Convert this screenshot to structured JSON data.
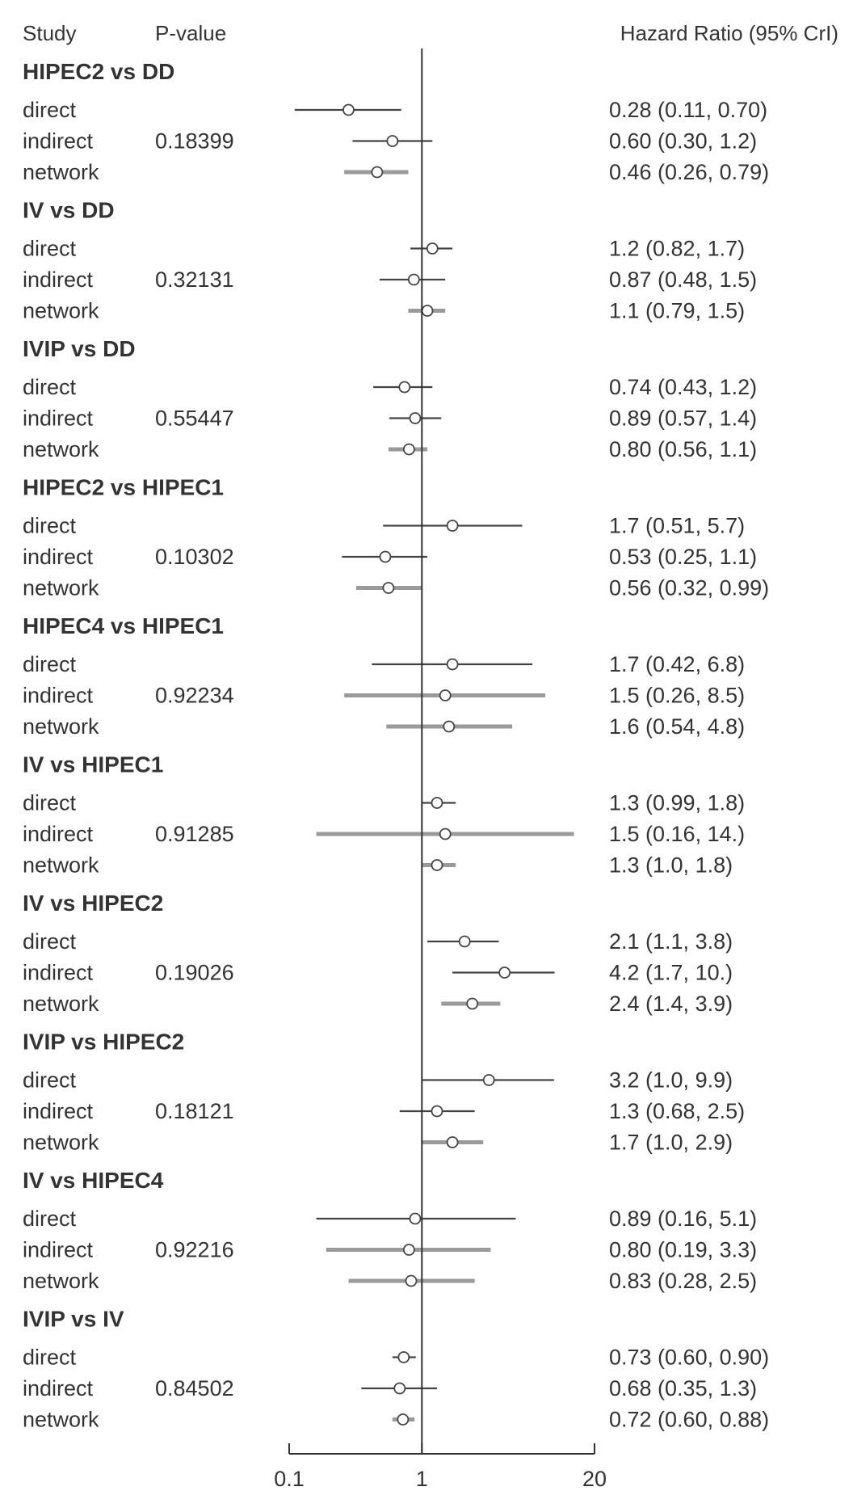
{
  "chart_data": {
    "type": "forest",
    "columns": {
      "study": "Study",
      "pvalue": "P-value",
      "effect": "Hazard Ratio (95% CrI)"
    },
    "x_scale": "log",
    "xlim": [
      0.1,
      20
    ],
    "xticks": [
      "0.1",
      "1",
      "20"
    ],
    "reference_line": 1,
    "groups": [
      {
        "label": "HIPEC2 vs DD",
        "pvalue": "0.18399",
        "rows": [
          {
            "name": "direct",
            "hr": 0.28,
            "lo": 0.11,
            "hi": 0.7,
            "text": "0.28 (0.11, 0.70)"
          },
          {
            "name": "indirect",
            "hr": 0.6,
            "lo": 0.3,
            "hi": 1.2,
            "text": "0.60 (0.30, 1.2)"
          },
          {
            "name": "network",
            "hr": 0.46,
            "lo": 0.26,
            "hi": 0.79,
            "text": "0.46 (0.26, 0.79)"
          }
        ]
      },
      {
        "label": "IV vs DD",
        "pvalue": "0.32131",
        "rows": [
          {
            "name": "direct",
            "hr": 1.2,
            "lo": 0.82,
            "hi": 1.7,
            "text": "1.2 (0.82, 1.7)"
          },
          {
            "name": "indirect",
            "hr": 0.87,
            "lo": 0.48,
            "hi": 1.5,
            "text": "0.87 (0.48, 1.5)"
          },
          {
            "name": "network",
            "hr": 1.1,
            "lo": 0.79,
            "hi": 1.5,
            "text": "1.1 (0.79, 1.5)"
          }
        ]
      },
      {
        "label": "IVIP vs DD",
        "pvalue": "0.55447",
        "rows": [
          {
            "name": "direct",
            "hr": 0.74,
            "lo": 0.43,
            "hi": 1.2,
            "text": "0.74 (0.43, 1.2)"
          },
          {
            "name": "indirect",
            "hr": 0.89,
            "lo": 0.57,
            "hi": 1.4,
            "text": "0.89 (0.57, 1.4)"
          },
          {
            "name": "network",
            "hr": 0.8,
            "lo": 0.56,
            "hi": 1.1,
            "text": "0.80 (0.56, 1.1)"
          }
        ]
      },
      {
        "label": "HIPEC2 vs HIPEC1",
        "pvalue": "0.10302",
        "rows": [
          {
            "name": "direct",
            "hr": 1.7,
            "lo": 0.51,
            "hi": 5.7,
            "text": "1.7 (0.51, 5.7)"
          },
          {
            "name": "indirect",
            "hr": 0.53,
            "lo": 0.25,
            "hi": 1.1,
            "text": "0.53 (0.25, 1.1)"
          },
          {
            "name": "network",
            "hr": 0.56,
            "lo": 0.32,
            "hi": 0.99,
            "text": "0.56 (0.32, 0.99)"
          }
        ]
      },
      {
        "label": "HIPEC4 vs HIPEC1",
        "pvalue": "0.92234",
        "rows": [
          {
            "name": "direct",
            "hr": 1.7,
            "lo": 0.42,
            "hi": 6.8,
            "text": "1.7 (0.42, 6.8)"
          },
          {
            "name": "indirect",
            "hr": 1.5,
            "lo": 0.26,
            "hi": 8.5,
            "text": "1.5 (0.26, 8.5)"
          },
          {
            "name": "network",
            "hr": 1.6,
            "lo": 0.54,
            "hi": 4.8,
            "text": "1.6 (0.54, 4.8)"
          }
        ]
      },
      {
        "label": "IV vs HIPEC1",
        "pvalue": "0.91285",
        "rows": [
          {
            "name": "direct",
            "hr": 1.3,
            "lo": 0.99,
            "hi": 1.8,
            "text": "1.3 (0.99, 1.8)"
          },
          {
            "name": "indirect",
            "hr": 1.5,
            "lo": 0.16,
            "hi": 14,
            "text": "1.5 (0.16,  14.)"
          },
          {
            "name": "network",
            "hr": 1.3,
            "lo": 1.0,
            "hi": 1.8,
            "text": "1.3 (1.0, 1.8)"
          }
        ]
      },
      {
        "label": "IV vs HIPEC2",
        "pvalue": "0.19026",
        "rows": [
          {
            "name": "direct",
            "hr": 2.1,
            "lo": 1.1,
            "hi": 3.8,
            "text": "2.1 (1.1, 3.8)"
          },
          {
            "name": "indirect",
            "hr": 4.2,
            "lo": 1.7,
            "hi": 10,
            "text": "4.2 (1.7, 10.)"
          },
          {
            "name": "network",
            "hr": 2.4,
            "lo": 1.4,
            "hi": 3.9,
            "text": "2.4 (1.4, 3.9)"
          }
        ]
      },
      {
        "label": "IVIP vs HIPEC2",
        "pvalue": "0.18121",
        "rows": [
          {
            "name": "direct",
            "hr": 3.2,
            "lo": 1.0,
            "hi": 9.9,
            "text": "3.2 (1.0, 9.9)"
          },
          {
            "name": "indirect",
            "hr": 1.3,
            "lo": 0.68,
            "hi": 2.5,
            "text": "1.3 (0.68, 2.5)"
          },
          {
            "name": "network",
            "hr": 1.7,
            "lo": 1.0,
            "hi": 2.9,
            "text": "1.7 (1.0, 2.9)"
          }
        ]
      },
      {
        "label": "IV vs HIPEC4",
        "pvalue": "0.92216",
        "rows": [
          {
            "name": "direct",
            "hr": 0.89,
            "lo": 0.16,
            "hi": 5.1,
            "text": "0.89 (0.16, 5.1)"
          },
          {
            "name": "indirect",
            "hr": 0.8,
            "lo": 0.19,
            "hi": 3.3,
            "text": "0.80 (0.19, 3.3)"
          },
          {
            "name": "network",
            "hr": 0.83,
            "lo": 0.28,
            "hi": 2.5,
            "text": "0.83 (0.28, 2.5)"
          }
        ]
      },
      {
        "label": "IVIP vs IV",
        "pvalue": "0.84502",
        "rows": [
          {
            "name": "direct",
            "hr": 0.73,
            "lo": 0.6,
            "hi": 0.9,
            "text": "0.73 (0.60, 0.90)"
          },
          {
            "name": "indirect",
            "hr": 0.68,
            "lo": 0.35,
            "hi": 1.3,
            "text": "0.68 (0.35, 1.3)"
          },
          {
            "name": "network",
            "hr": 0.72,
            "lo": 0.6,
            "hi": 0.88,
            "text": "0.72 (0.60, 0.88)"
          }
        ]
      }
    ]
  },
  "colors": {
    "text": "#333333",
    "ci_line": "#444444",
    "ci_band": "#9a9a9a",
    "marker_fill": "#ffffff",
    "axis": "#333333"
  }
}
